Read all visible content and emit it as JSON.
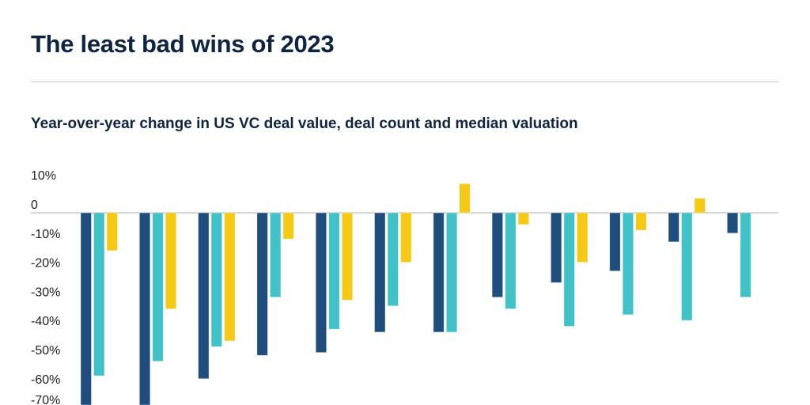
{
  "title": "The least bad wins of 2023",
  "chart_data": {
    "type": "bar",
    "subtitle": "Year-over-year change in US VC deal value, deal count and median valuation",
    "ylim": [
      -70,
      10
    ],
    "yticks": [
      "10%",
      "0",
      "-10%",
      "-20%",
      "-30%",
      "-40%",
      "-50%",
      "-60%",
      "-70%"
    ],
    "ytick_values": [
      10,
      0,
      -10,
      -20,
      -30,
      -40,
      -50,
      -60,
      -70
    ],
    "grid": false,
    "colors": [
      "#1f4e7e",
      "#40c2c8",
      "#f5c914"
    ],
    "series": [
      {
        "values": [
          -75,
          -75,
          -57,
          -49,
          -48,
          -41,
          -41,
          -29,
          -24,
          -20,
          -10,
          -7
        ]
      },
      {
        "values": [
          -56,
          -51,
          -46,
          -29,
          -40,
          -32,
          -41,
          -33,
          -39,
          -35,
          -37,
          -29
        ]
      },
      {
        "values": [
          -13,
          -33,
          -44,
          -9,
          -30,
          -17,
          10,
          -4,
          -17,
          -6,
          5,
          null
        ]
      }
    ]
  }
}
